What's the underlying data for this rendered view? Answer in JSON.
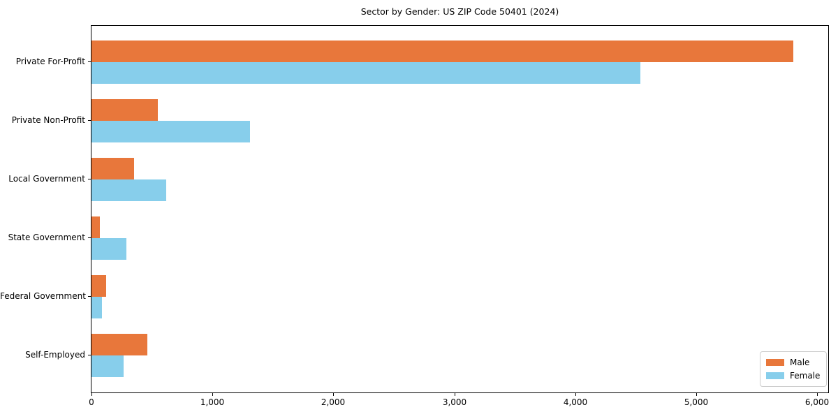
{
  "chart_data": {
    "type": "bar",
    "orientation": "horizontal",
    "title": "Sector by Gender: US ZIP Code 50401 (2024)",
    "categories": [
      "Private For-Profit",
      "Private Non-Profit",
      "Local Government",
      "State Government",
      "Federal Government",
      "Self-Employed"
    ],
    "series": [
      {
        "name": "Male",
        "color": "#e8773b",
        "values": [
          5800,
          550,
          355,
          70,
          120,
          460
        ]
      },
      {
        "name": "Female",
        "color": "#87ceeb",
        "values": [
          4540,
          1310,
          620,
          290,
          85,
          265
        ]
      }
    ],
    "xlabel": "",
    "ylabel": "",
    "xlim": [
      0,
      6090
    ],
    "x_ticks": [
      0,
      1000,
      2000,
      3000,
      4000,
      5000,
      6000
    ],
    "x_tick_labels": [
      "0",
      "1,000",
      "2,000",
      "3,000",
      "4,000",
      "5,000",
      "6,000"
    ],
    "grid": false,
    "legend": {
      "position": "lower right",
      "entries": [
        "Male",
        "Female"
      ]
    }
  }
}
